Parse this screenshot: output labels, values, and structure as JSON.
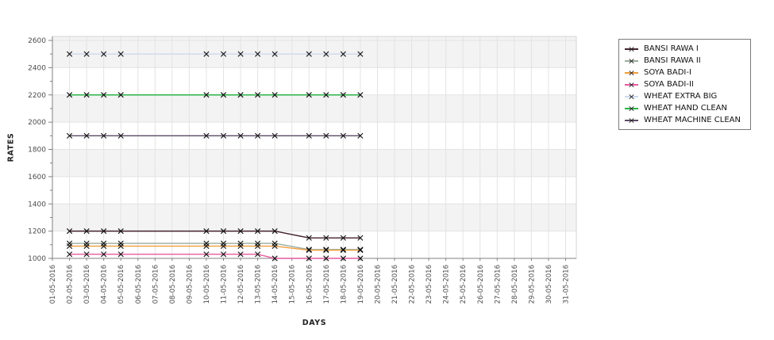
{
  "page": {
    "background": "#ffffff"
  },
  "chart_data": {
    "type": "line",
    "title": "",
    "xlabel": "DAYS",
    "ylabel": "RATES",
    "ylim": [
      1000,
      2600
    ],
    "y_ticks": [
      1000,
      1200,
      1400,
      1600,
      1800,
      2000,
      2200,
      2400,
      2600
    ],
    "x_tick_labels": [
      "01-05-2016",
      "02-05-2016",
      "03-05-2016",
      "04-05-2016",
      "05-05-2016",
      "06-05-2016",
      "07-05-2016",
      "08-05-2016",
      "09-05-2016",
      "10-05-2016",
      "11-05-2016",
      "12-05-2016",
      "13-05-2016",
      "14-05-2016",
      "15-05-2016",
      "16-05-2016",
      "17-05-2016",
      "18-05-2016",
      "19-05-2016",
      "20-05-2016",
      "21-05-2016",
      "22-05-2016",
      "23-05-2016",
      "24-05-2016",
      "25-05-2016",
      "26-05-2016",
      "27-05-2016",
      "28-05-2016",
      "29-05-2016",
      "30-05-2016",
      "31-05-2016"
    ],
    "grid": true,
    "band_colors": [
      "#f3f3f3",
      "#ffffff"
    ],
    "gridline_color": "#e3e3e3",
    "axis_color": "#808080",
    "border_color": "#d6d6d6",
    "tick_label_color": "#4d4d4d",
    "marker": "x",
    "marker_color": "#111111",
    "legend_position": "right",
    "series": [
      {
        "name": "BANSI RAWA I",
        "color": "#43212c",
        "days": [
          2,
          3,
          4,
          5,
          10,
          11,
          12,
          13,
          14,
          16,
          17,
          18,
          19
        ],
        "values": [
          1200,
          1200,
          1200,
          1200,
          1200,
          1200,
          1200,
          1200,
          1200,
          1150,
          1150,
          1150,
          1150
        ]
      },
      {
        "name": "BANSI RAWA II",
        "color": "#9bab9b",
        "days": [
          2,
          3,
          4,
          5,
          10,
          11,
          12,
          13,
          14,
          16,
          17,
          18,
          19
        ],
        "values": [
          1110,
          1110,
          1110,
          1110,
          1110,
          1110,
          1110,
          1110,
          1110,
          1065,
          1065,
          1065,
          1065
        ]
      },
      {
        "name": "SOYA BADI-I",
        "color": "#ef9d3c",
        "days": [
          2,
          3,
          4,
          5,
          10,
          11,
          12,
          13,
          14,
          16,
          17,
          18,
          19
        ],
        "values": [
          1090,
          1090,
          1090,
          1090,
          1090,
          1090,
          1090,
          1090,
          1090,
          1060,
          1060,
          1060,
          1060
        ]
      },
      {
        "name": "SOYA BADI-II",
        "color": "#e65a9e",
        "days": [
          2,
          3,
          4,
          5,
          10,
          11,
          12,
          13,
          14,
          16,
          17,
          18,
          19
        ],
        "values": [
          1030,
          1030,
          1030,
          1030,
          1030,
          1030,
          1030,
          1030,
          1000,
          1000,
          1000,
          1000,
          1000
        ]
      },
      {
        "name": "WHEAT EXTRA BIG",
        "color": "#ccdaee",
        "days": [
          2,
          3,
          4,
          5,
          10,
          11,
          12,
          13,
          14,
          16,
          17,
          18,
          19
        ],
        "values": [
          2500,
          2500,
          2500,
          2500,
          2500,
          2500,
          2500,
          2500,
          2500,
          2500,
          2500,
          2500,
          2500
        ]
      },
      {
        "name": "WHEAT HAND CLEAN",
        "color": "#2db34a",
        "days": [
          2,
          3,
          4,
          5,
          10,
          11,
          12,
          13,
          14,
          16,
          17,
          18,
          19
        ],
        "values": [
          2200,
          2200,
          2200,
          2200,
          2200,
          2200,
          2200,
          2200,
          2200,
          2200,
          2200,
          2200,
          2200
        ]
      },
      {
        "name": "WHEAT MACHINE CLEAN",
        "color": "#5d4a64",
        "days": [
          2,
          3,
          4,
          5,
          10,
          11,
          12,
          13,
          14,
          16,
          17,
          18,
          19
        ],
        "values": [
          1900,
          1900,
          1900,
          1900,
          1900,
          1900,
          1900,
          1900,
          1900,
          1900,
          1900,
          1900,
          1900
        ]
      }
    ]
  }
}
